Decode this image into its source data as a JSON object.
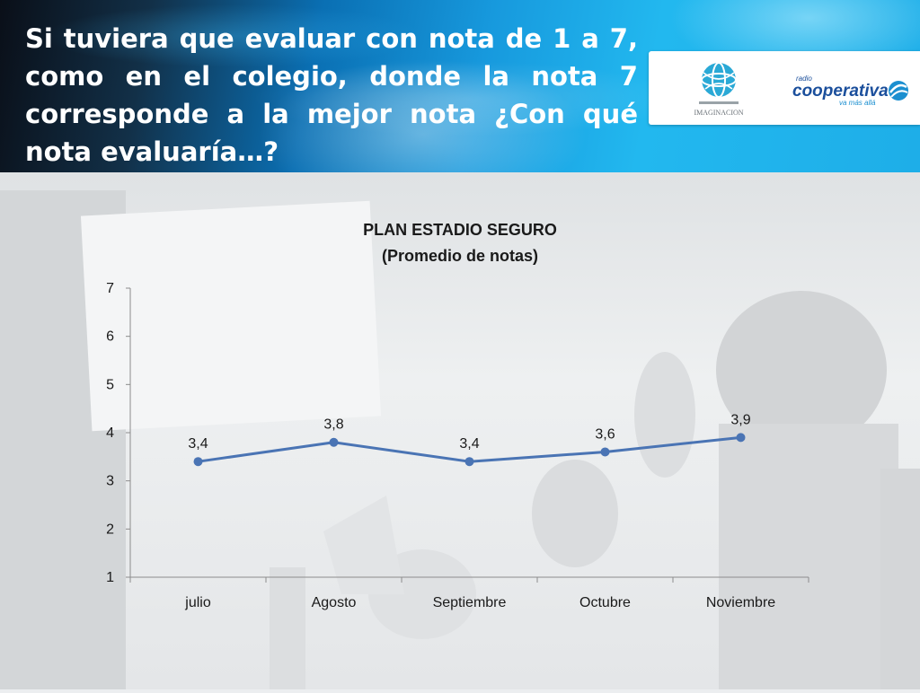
{
  "slide": {
    "title": "Si tuviera que evaluar con nota de 1 a 7, como en el colegio, donde la nota 7 corresponde a la mejor nota ¿Con qué nota evaluaría…?",
    "logos": {
      "left": {
        "text": "IMAGINACION"
      },
      "right": {
        "brand_small": "radio",
        "brand": "cooperativa",
        "tagline": "va más allá"
      }
    }
  },
  "chart_data": {
    "type": "line",
    "title": "PLAN ESTADIO SEGURO",
    "subtitle": "(Promedio de notas)",
    "categories": [
      "julio",
      "Agosto",
      "Septiembre",
      "Octubre",
      "Noviembre"
    ],
    "series": [
      {
        "values": [
          3.4,
          3.8,
          3.4,
          3.6,
          3.9
        ],
        "labels": [
          "3,4",
          "3,8",
          "3,4",
          "3,6",
          "3,9"
        ]
      }
    ],
    "ylim": [
      1,
      7
    ],
    "yticks": [
      "1",
      "2",
      "3",
      "4",
      "5",
      "6",
      "7"
    ],
    "grid": false,
    "legend": "none",
    "line_color": "#4a74b4",
    "marker_color": "#4a74b4"
  }
}
